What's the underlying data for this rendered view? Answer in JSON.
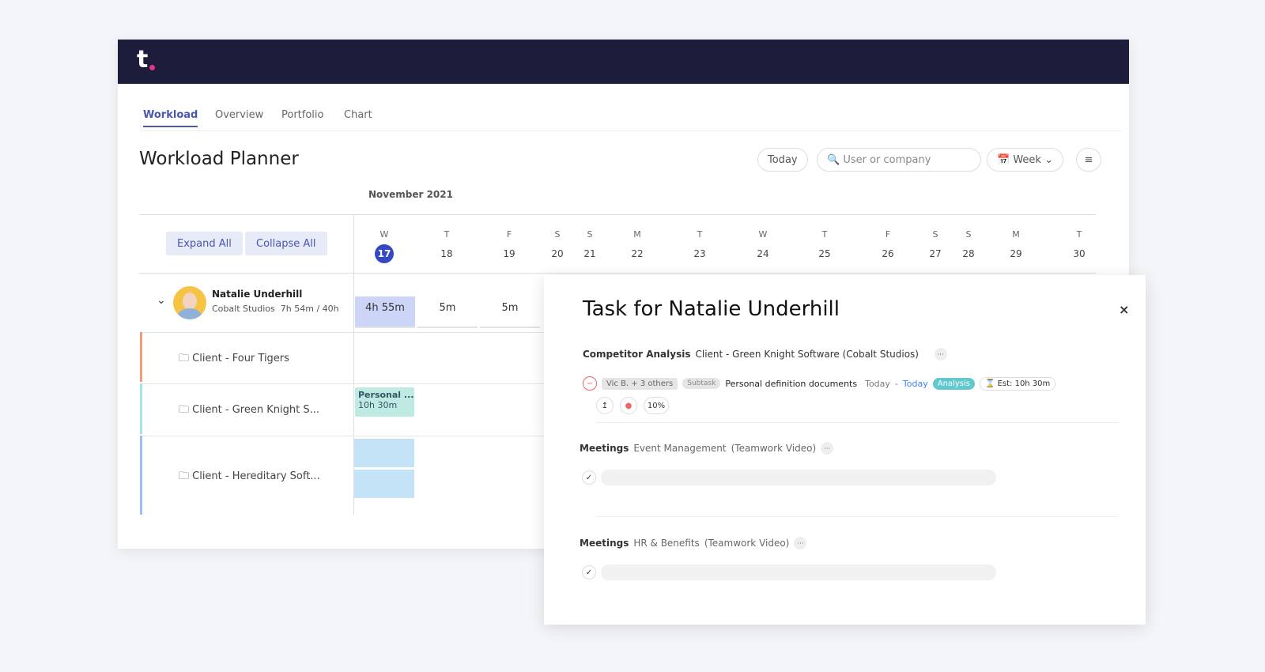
{
  "header": {
    "logo": "t"
  },
  "tabs": [
    "Workload",
    "Overview",
    "Portfolio",
    "Chart"
  ],
  "toolbar": {
    "title": "Workload Planner",
    "today": "Today",
    "search_placeholder": "User or company",
    "view": "Week"
  },
  "calendar": {
    "month": "November 2021",
    "expand": "Expand All",
    "collapse": "Collapse All",
    "days": [
      {
        "letter": "W",
        "date": 17
      },
      {
        "letter": "T",
        "date": 18
      },
      {
        "letter": "F",
        "date": 19
      },
      {
        "letter": "S",
        "date": 20
      },
      {
        "letter": "S",
        "date": 21
      },
      {
        "letter": "M",
        "date": 22
      },
      {
        "letter": "T",
        "date": 23
      },
      {
        "letter": "W",
        "date": 24
      },
      {
        "letter": "T",
        "date": 25
      },
      {
        "letter": "F",
        "date": 26
      },
      {
        "letter": "S",
        "date": 27
      },
      {
        "letter": "S",
        "date": 28
      },
      {
        "letter": "M",
        "date": 29
      },
      {
        "letter": "T",
        "date": 30
      }
    ]
  },
  "user": {
    "name": "Natalie Underhill",
    "company": "Cobalt Studios",
    "hours": "7h 54m / 40h",
    "totals": [
      "4h 55m",
      "5m",
      "5m"
    ]
  },
  "projects": [
    "Client - Four Tigers",
    "Client - Green Knight S...",
    "Client - Hereditary Soft..."
  ],
  "task_block": {
    "name": "Personal ...",
    "duration": "10h 30m"
  },
  "panel": {
    "title": "Task for Natalie Underhill",
    "groups": [
      {
        "category": "Competitor Analysis",
        "project": "Client - Green Knight Software (Cobalt Studios)",
        "task": {
          "assignee": "Vic B. + 3 others",
          "type": "Subtask",
          "name": "Personal definition documents",
          "start": "Today",
          "separator": "-",
          "end": "Today",
          "tag": "Analysis",
          "estimate": "Est: 10h 30m",
          "progress": "10%"
        }
      },
      {
        "category": "Meetings",
        "project": "Event Management",
        "client": "(Teamwork Video)"
      },
      {
        "category": "Meetings",
        "project": "HR & Benefits",
        "client": "(Teamwork Video)"
      }
    ]
  }
}
